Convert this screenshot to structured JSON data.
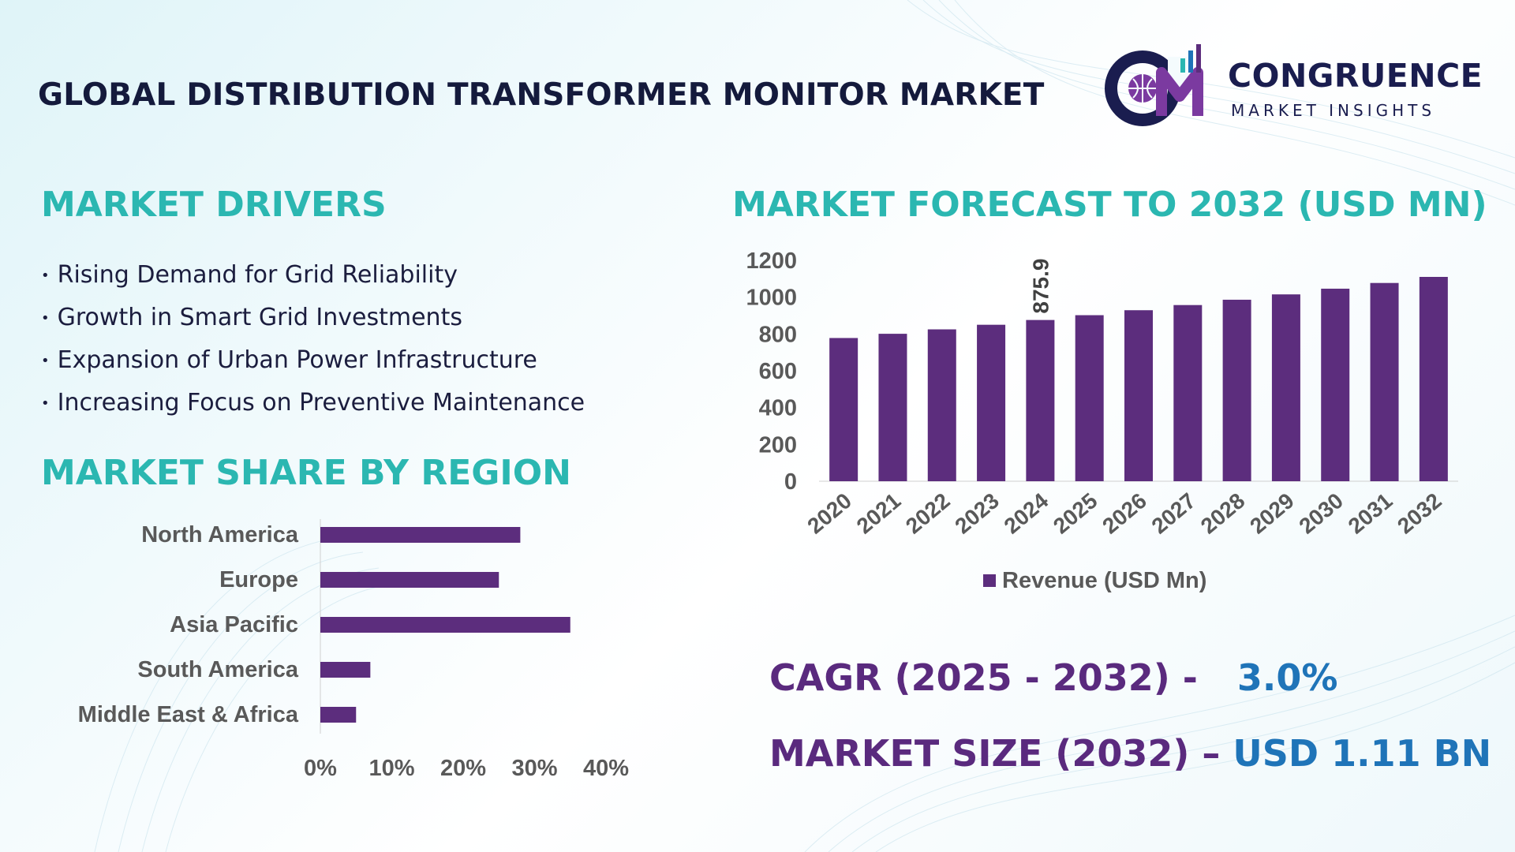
{
  "header": {
    "title": "GLOBAL DISTRIBUTION TRANSFORMER MONITOR MARKET",
    "logo_line1": "CONGRUENCE",
    "logo_line2": "MARKET INSIGHTS"
  },
  "drivers": {
    "title": "MARKET DRIVERS",
    "items": [
      "Rising Demand for Grid Reliability",
      "Growth in Smart Grid Investments",
      "Expansion of Urban Power Infrastructure",
      "Increasing Focus on Preventive Maintenance"
    ]
  },
  "region_section": {
    "title": "MARKET SHARE BY REGION"
  },
  "forecast_section": {
    "title": "MARKET FORECAST TO 2032 (USD MN)"
  },
  "kpis": {
    "cagr_label": "CAGR (2025 - 2032) -",
    "cagr_value": "3.0%",
    "size_label": "MARKET SIZE (2032) –",
    "size_value": "USD 1.11 BN"
  },
  "colors": {
    "bar": "#5c2d7d",
    "accent_title": "#2bb7b1",
    "kpi_label": "#5a2a7e",
    "kpi_value": "#1f74b8",
    "heading": "#141a3c"
  },
  "chart_data": [
    {
      "type": "bar",
      "orientation": "horizontal",
      "categories": [
        "North America",
        "Europe",
        "Asia Pacific",
        "South America",
        "Middle East & Africa"
      ],
      "values": [
        28,
        25,
        35,
        7,
        5
      ],
      "xlim": [
        0,
        40
      ],
      "xticks": [
        "0%",
        "10%",
        "20%",
        "30%",
        "40%"
      ],
      "grid": false,
      "legend": "none"
    },
    {
      "type": "bar",
      "categories": [
        "2020",
        "2021",
        "2022",
        "2023",
        "2024",
        "2025",
        "2026",
        "2027",
        "2028",
        "2029",
        "2030",
        "2031",
        "2032"
      ],
      "series": [
        {
          "name": "Revenue (USD Mn)",
          "values": [
            778,
            801,
            825,
            850,
            875.9,
            902,
            929,
            957,
            986,
            1015,
            1046,
            1077,
            1110
          ]
        }
      ],
      "data_labels": [
        {
          "category": "2024",
          "label": "875.9"
        }
      ],
      "ylim": [
        0,
        1200
      ],
      "yticks": [
        "0",
        "200",
        "400",
        "600",
        "800",
        "1000",
        "1200"
      ],
      "grid": false,
      "legend": "bottom"
    }
  ]
}
